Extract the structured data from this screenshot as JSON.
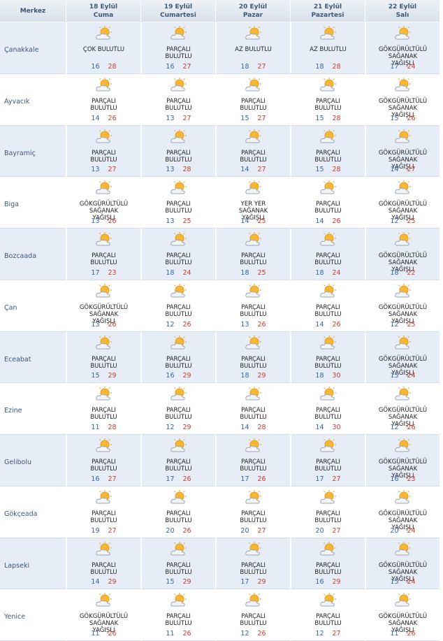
{
  "header": {
    "city": "Merkez",
    "days": [
      {
        "date": "18 Eylül",
        "weekday": "Cuma"
      },
      {
        "date": "19 Eylül",
        "weekday": "Cumartesi"
      },
      {
        "date": "20 Eylül",
        "weekday": "Pazar"
      },
      {
        "date": "21 Eylül",
        "weekday": "Pazartesi"
      },
      {
        "date": "22 Eylül",
        "weekday": "Salı"
      }
    ]
  },
  "rows": [
    {
      "city": "Çanakkale",
      "days": [
        {
          "condition": "ÇOK BULUTLU",
          "low": 16,
          "high": 28
        },
        {
          "condition": "PARÇALI BULUTLU",
          "low": 16,
          "high": 27
        },
        {
          "condition": "AZ BULUTLU",
          "low": 18,
          "high": 27
        },
        {
          "condition": "AZ BULUTLU",
          "low": 18,
          "high": 28
        },
        {
          "condition": "GÖKGÜRÜLTÜLÜ SAĞANAK YAĞIŞLI",
          "low": 17,
          "high": 24
        }
      ]
    },
    {
      "city": "Ayvacık",
      "days": [
        {
          "condition": "PARÇALI BULUTLU",
          "low": 14,
          "high": 26
        },
        {
          "condition": "PARÇALI BULUTLU",
          "low": 13,
          "high": 27
        },
        {
          "condition": "PARÇALI BULUTLU",
          "low": 15,
          "high": 27
        },
        {
          "condition": "PARÇALI BULUTLU",
          "low": 15,
          "high": 28
        },
        {
          "condition": "GÖKGÜRÜLTÜLÜ SAĞANAK YAĞIŞLI",
          "low": 15,
          "high": 26
        }
      ]
    },
    {
      "city": "Bayramiç",
      "days": [
        {
          "condition": "PARÇALI BULUTLU",
          "low": 13,
          "high": 27
        },
        {
          "condition": "PARÇALI BULUTLU",
          "low": 13,
          "high": 28
        },
        {
          "condition": "PARÇALI BULUTLU",
          "low": 14,
          "high": 27
        },
        {
          "condition": "PARÇALI BULUTLU",
          "low": 15,
          "high": 28
        },
        {
          "condition": "GÖKGÜRÜLTÜLÜ SAĞANAK YAĞIŞLI",
          "low": 14,
          "high": 27
        }
      ]
    },
    {
      "city": "Biga",
      "days": [
        {
          "condition": "GÖKGÜRÜLTÜLÜ SAĞANAK YAĞIŞLI",
          "low": 13,
          "high": 26
        },
        {
          "condition": "PARÇALI BULUTLU",
          "low": 13,
          "high": 25
        },
        {
          "condition": "YER YER SAĞANAK YAĞIŞLI",
          "low": 14,
          "high": 25
        },
        {
          "condition": "PARÇALI BULUTLU",
          "low": 14,
          "high": 26
        },
        {
          "condition": "GÖKGÜRÜLTÜLÜ SAĞANAK YAĞIŞLI",
          "low": 12,
          "high": 25
        }
      ]
    },
    {
      "city": "Bozcaada",
      "days": [
        {
          "condition": "PARÇALI BULUTLU",
          "low": 17,
          "high": 23
        },
        {
          "condition": "PARÇALI BULUTLU",
          "low": 18,
          "high": 24
        },
        {
          "condition": "PARÇALI BULUTLU",
          "low": 18,
          "high": 25
        },
        {
          "condition": "PARÇALI BULUTLU",
          "low": 18,
          "high": 24
        },
        {
          "condition": "GÖKGÜRÜLTÜLÜ SAĞANAK YAĞIŞLI",
          "low": 18,
          "high": 22
        }
      ]
    },
    {
      "city": "Çan",
      "days": [
        {
          "condition": "GÖKGÜRÜLTÜLÜ SAĞANAK YAĞIŞLI",
          "low": 13,
          "high": 26
        },
        {
          "condition": "PARÇALI BULUTLU",
          "low": 12,
          "high": 26
        },
        {
          "condition": "PARÇALI BULUTLU",
          "low": 13,
          "high": 26
        },
        {
          "condition": "PARÇALI BULUTLU",
          "low": 14,
          "high": 26
        },
        {
          "condition": "GÖKGÜRÜLTÜLÜ SAĞANAK YAĞIŞLI",
          "low": 12,
          "high": 25
        }
      ]
    },
    {
      "city": "Eceabat",
      "days": [
        {
          "condition": "PARÇALI BULUTLU",
          "low": 15,
          "high": 29
        },
        {
          "condition": "PARÇALI BULUTLU",
          "low": 16,
          "high": 29
        },
        {
          "condition": "PARÇALI BULUTLU",
          "low": 18,
          "high": 29
        },
        {
          "condition": "PARÇALI BULUTLU",
          "low": 18,
          "high": 30
        },
        {
          "condition": "GÖKGÜRÜLTÜLÜ SAĞANAK YAĞIŞLI",
          "low": 15,
          "high": 24
        }
      ]
    },
    {
      "city": "Ezine",
      "days": [
        {
          "condition": "PARÇALI BULUTLU",
          "low": 11,
          "high": 28
        },
        {
          "condition": "PARÇALI BULUTLU",
          "low": 12,
          "high": 29
        },
        {
          "condition": "PARÇALI BULUTLU",
          "low": 14,
          "high": 28
        },
        {
          "condition": "PARÇALI BULUTLU",
          "low": 14,
          "high": 30
        },
        {
          "condition": "GÖKGÜRÜLTÜLÜ SAĞANAK YAĞIŞLI",
          "low": 12,
          "high": 26
        }
      ]
    },
    {
      "city": "Gelibolu",
      "days": [
        {
          "condition": "PARÇALI BULUTLU",
          "low": 16,
          "high": 27
        },
        {
          "condition": "PARÇALI BULUTLU",
          "low": 17,
          "high": 26
        },
        {
          "condition": "PARÇALI BULUTLU",
          "low": 17,
          "high": 26
        },
        {
          "condition": "PARÇALI BULUTLU",
          "low": 17,
          "high": 27
        },
        {
          "condition": "GÖKGÜRÜLTÜLÜ SAĞANAK YAĞIŞLI",
          "low": 16,
          "high": 23
        }
      ]
    },
    {
      "city": "Gökçeada",
      "days": [
        {
          "condition": "PARÇALI BULUTLU",
          "low": 19,
          "high": 27
        },
        {
          "condition": "PARÇALI BULUTLU",
          "low": 20,
          "high": 26
        },
        {
          "condition": "PARÇALI BULUTLU",
          "low": 20,
          "high": 27
        },
        {
          "condition": "PARÇALI BULUTLU",
          "low": 20,
          "high": 27
        },
        {
          "condition": "GÖKGÜRÜLTÜLÜ SAĞANAK YAĞIŞLI",
          "low": 20,
          "high": 24
        }
      ]
    },
    {
      "city": "Lapseki",
      "days": [
        {
          "condition": "PARÇALI BULUTLU",
          "low": 14,
          "high": 29
        },
        {
          "condition": "PARÇALI BULUTLU",
          "low": 15,
          "high": 29
        },
        {
          "condition": "PARÇALI BULUTLU",
          "low": 17,
          "high": 29
        },
        {
          "condition": "PARÇALI BULUTLU",
          "low": 16,
          "high": 29
        },
        {
          "condition": "GÖKGÜRÜLTÜLÜ SAĞANAK YAĞIŞLI",
          "low": 15,
          "high": 24
        }
      ]
    },
    {
      "city": "Yenice",
      "days": [
        {
          "condition": "GÖKGÜRÜLTÜLÜ SAĞANAK YAĞIŞLI",
          "low": 11,
          "high": 26
        },
        {
          "condition": "PARÇALI BULUTLU",
          "low": 11,
          "high": 26
        },
        {
          "condition": "PARÇALI BULUTLU",
          "low": 12,
          "high": 26
        },
        {
          "condition": "PARÇALI BULUTLU",
          "low": 12,
          "high": 27
        },
        {
          "condition": "GÖKGÜRÜLTÜLÜ SAĞANAK YAĞIŞLI",
          "low": 11,
          "high": 26
        }
      ]
    }
  ]
}
